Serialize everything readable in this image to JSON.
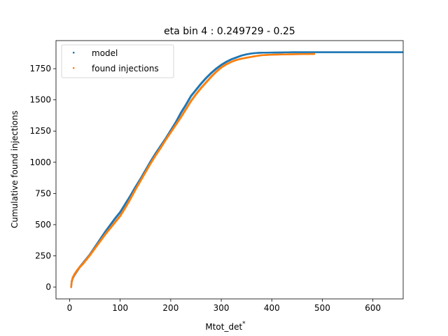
{
  "chart_data": {
    "type": "scatter",
    "title": "eta bin 4 : 0.249729 - 0.25",
    "xlabel": "Mtot_det",
    "xlabel_superscript": "*",
    "ylabel": "Cumulative found injections",
    "xlim": [
      -27,
      660
    ],
    "ylim": [
      -95,
      1975
    ],
    "x_ticks": [
      0,
      100,
      200,
      300,
      400,
      500,
      600
    ],
    "y_ticks": [
      0,
      250,
      500,
      750,
      1000,
      1250,
      1500,
      1750
    ],
    "grid": false,
    "legend_position": "top-left",
    "series": [
      {
        "name": "model",
        "color": "#1f77b4",
        "points": [
          [
            3,
            0
          ],
          [
            4,
            40
          ],
          [
            6,
            70
          ],
          [
            10,
            100
          ],
          [
            15,
            130
          ],
          [
            20,
            160
          ],
          [
            25,
            185
          ],
          [
            30,
            210
          ],
          [
            40,
            260
          ],
          [
            50,
            320
          ],
          [
            60,
            380
          ],
          [
            70,
            440
          ],
          [
            80,
            495
          ],
          [
            90,
            550
          ],
          [
            100,
            600
          ],
          [
            110,
            665
          ],
          [
            120,
            730
          ],
          [
            130,
            800
          ],
          [
            140,
            865
          ],
          [
            150,
            935
          ],
          [
            160,
            1005
          ],
          [
            170,
            1070
          ],
          [
            180,
            1130
          ],
          [
            190,
            1190
          ],
          [
            200,
            1255
          ],
          [
            210,
            1320
          ],
          [
            220,
            1395
          ],
          [
            230,
            1460
          ],
          [
            240,
            1530
          ],
          [
            250,
            1580
          ],
          [
            260,
            1630
          ],
          [
            270,
            1675
          ],
          [
            280,
            1715
          ],
          [
            290,
            1750
          ],
          [
            300,
            1780
          ],
          [
            310,
            1805
          ],
          [
            320,
            1825
          ],
          [
            330,
            1840
          ],
          [
            340,
            1855
          ],
          [
            350,
            1865
          ],
          [
            360,
            1872
          ],
          [
            370,
            1876
          ],
          [
            380,
            1878
          ],
          [
            400,
            1879
          ],
          [
            420,
            1880
          ],
          [
            440,
            1882
          ],
          [
            460,
            1882
          ],
          [
            480,
            1882
          ],
          [
            500,
            1882
          ],
          [
            520,
            1882
          ],
          [
            540,
            1882
          ],
          [
            560,
            1882
          ],
          [
            575,
            1882
          ],
          [
            585,
            1882
          ],
          [
            600,
            1882
          ],
          [
            615,
            1882
          ],
          [
            630,
            1882
          ],
          [
            658,
            1882
          ]
        ]
      },
      {
        "name": "found injections",
        "color": "#ff7f0e",
        "points": [
          [
            3,
            0
          ],
          [
            4,
            45
          ],
          [
            6,
            75
          ],
          [
            10,
            105
          ],
          [
            15,
            135
          ],
          [
            20,
            160
          ],
          [
            25,
            180
          ],
          [
            30,
            205
          ],
          [
            40,
            255
          ],
          [
            50,
            310
          ],
          [
            60,
            365
          ],
          [
            70,
            420
          ],
          [
            80,
            470
          ],
          [
            90,
            520
          ],
          [
            100,
            570
          ],
          [
            110,
            635
          ],
          [
            120,
            705
          ],
          [
            130,
            780
          ],
          [
            140,
            850
          ],
          [
            150,
            920
          ],
          [
            160,
            990
          ],
          [
            170,
            1055
          ],
          [
            180,
            1115
          ],
          [
            190,
            1180
          ],
          [
            200,
            1240
          ],
          [
            210,
            1300
          ],
          [
            220,
            1360
          ],
          [
            230,
            1425
          ],
          [
            240,
            1490
          ],
          [
            250,
            1545
          ],
          [
            260,
            1595
          ],
          [
            270,
            1640
          ],
          [
            280,
            1685
          ],
          [
            290,
            1725
          ],
          [
            300,
            1760
          ],
          [
            310,
            1785
          ],
          [
            320,
            1805
          ],
          [
            330,
            1820
          ],
          [
            340,
            1830
          ],
          [
            350,
            1838
          ],
          [
            360,
            1845
          ],
          [
            370,
            1852
          ],
          [
            380,
            1858
          ],
          [
            390,
            1860
          ],
          [
            400,
            1862
          ],
          [
            410,
            1863
          ],
          [
            420,
            1864
          ],
          [
            430,
            1865
          ],
          [
            445,
            1866
          ],
          [
            484,
            1868
          ]
        ]
      }
    ]
  }
}
